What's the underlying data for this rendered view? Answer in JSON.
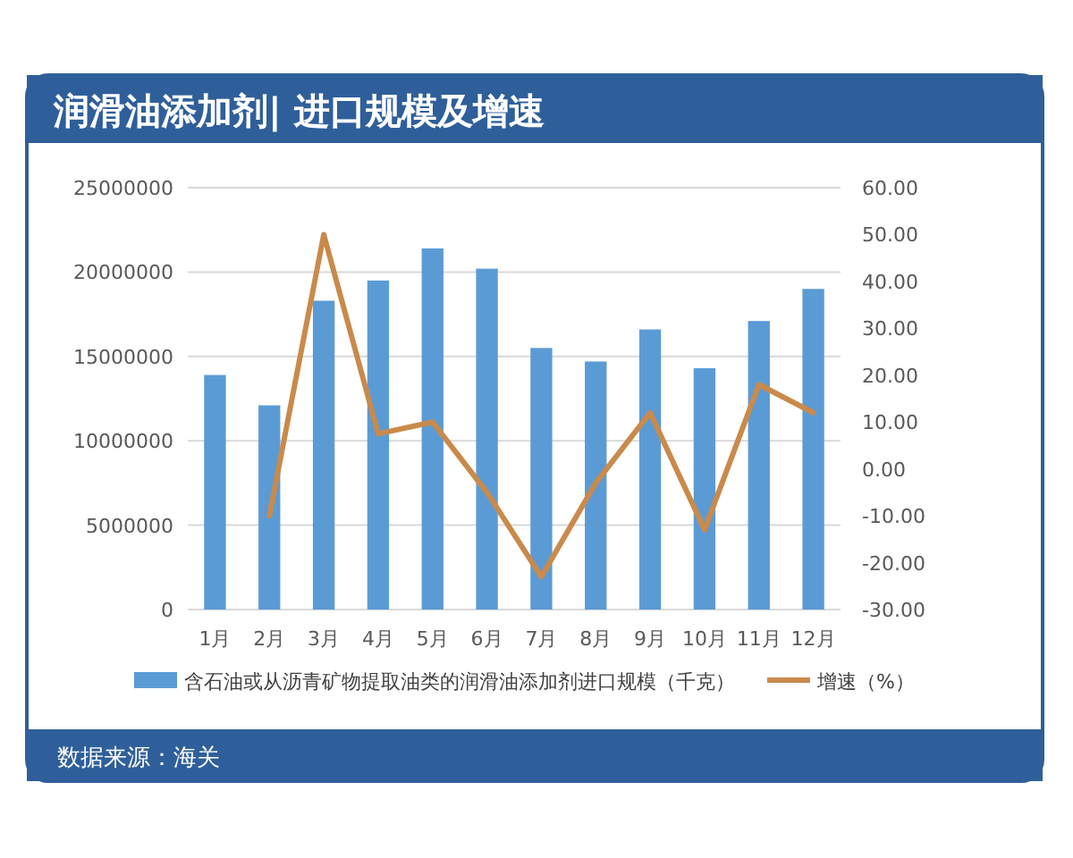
{
  "chart_data": {
    "type": "bar",
    "title": "润滑油添加剂| 进口规模及增速",
    "categories": [
      "1月",
      "2月",
      "3月",
      "4月",
      "5月",
      "6月",
      "7月",
      "8月",
      "9月",
      "10月",
      "11月",
      "12月"
    ],
    "series": [
      {
        "name": "含石油或从沥青矿物提取油类的润滑油添加剂进口规模（千克）",
        "color": "#5b9bd5",
        "values": [
          13900000,
          12100000,
          18300000,
          19500000,
          21400000,
          20200000,
          15500000,
          14700000,
          16600000,
          14300000,
          17100000,
          19000000
        ]
      },
      {
        "name": "增速（%）",
        "color": "#c98a4b",
        "type": "line",
        "axis": "y2",
        "values": [
          null,
          -10,
          50,
          7.5,
          10,
          -5,
          -23,
          -3,
          12,
          -13,
          18,
          12
        ]
      }
    ],
    "ylim": [
      0,
      25000000
    ],
    "yticks": [
      0,
      5000000,
      10000000,
      15000000,
      20000000,
      25000000
    ],
    "y2lim": [
      -30,
      60
    ],
    "y2ticks": [
      {
        "value": -30,
        "label": "-30.00"
      },
      {
        "value": -20,
        "label": "-20.00"
      },
      {
        "value": -10,
        "label": "-10.00"
      },
      {
        "value": 0,
        "label": "0.00"
      },
      {
        "value": 10,
        "label": "10.00"
      },
      {
        "value": 20,
        "label": "20.00"
      },
      {
        "value": 30,
        "label": "30.00"
      },
      {
        "value": 40,
        "label": "40.00"
      },
      {
        "value": 50,
        "label": "50.00"
      },
      {
        "value": 60,
        "label": "60.00"
      }
    ],
    "grid": "y",
    "legend": "bottom",
    "marker": "none",
    "line_style": "solid",
    "annotations": [
      "数据来源：海关"
    ]
  }
}
